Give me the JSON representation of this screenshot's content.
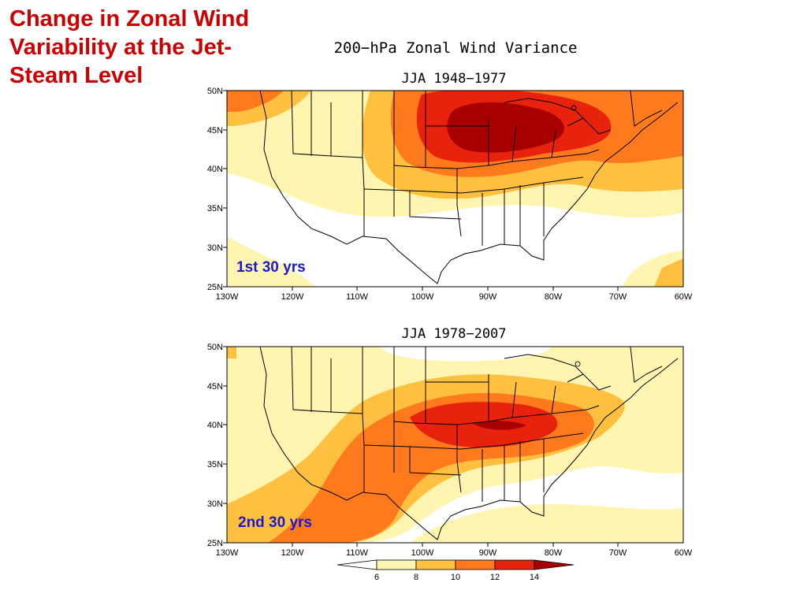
{
  "slide": {
    "title_lines": [
      "Change in Zonal Wind",
      "Variability at the Jet-",
      "Steam Level"
    ]
  },
  "figure": {
    "title": "200−hPa Zonal Wind Variance"
  },
  "panels": [
    {
      "subtitle": "JJA   1948−1977",
      "label": "1st 30 yrs"
    },
    {
      "subtitle": "JJA   1978−2007",
      "label": "2nd 30 yrs"
    }
  ],
  "axes": {
    "lat_labels": [
      "50N",
      "45N",
      "40N",
      "35N",
      "30N",
      "25N"
    ],
    "lon_labels": [
      "130W",
      "120W",
      "110W",
      "100W",
      "90W",
      "80W",
      "70W",
      "60W"
    ]
  },
  "colorbar": {
    "labels": [
      "6",
      "8",
      "10",
      "12",
      "14"
    ],
    "colors": [
      "#ffffff",
      "#fff5b0",
      "#ffc040",
      "#ff7a1c",
      "#e8220c",
      "#a80000"
    ]
  },
  "colors": {
    "title_red": "#cc0000",
    "panel_label_blue": "#1a1acc"
  }
}
